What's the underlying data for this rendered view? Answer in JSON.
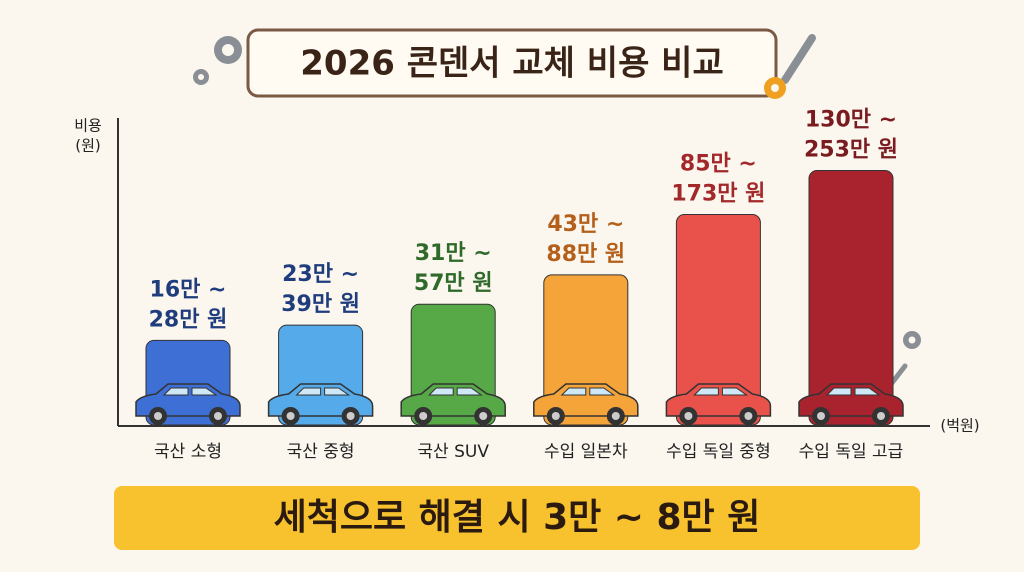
{
  "chart_data": {
    "type": "range-bar",
    "title": "2026 콘덴서 교체 비용 비교",
    "y_axis_label": [
      "비용",
      "(원)"
    ],
    "x_axis_unit": "(벅원)",
    "categories": [
      "국산 소형",
      "국산 중형",
      "국산 SUV",
      "수입 일본차",
      "수입 독일 중형",
      "수입 독일 고급"
    ],
    "low": [
      16,
      23,
      31,
      43,
      85,
      130
    ],
    "high": [
      28,
      39,
      57,
      88,
      173,
      253
    ],
    "value_labels": [
      [
        "16만 ~",
        "28만 원"
      ],
      [
        "23만 ~",
        "39만 원"
      ],
      [
        "31만 ~",
        "57만 원"
      ],
      [
        "43만 ~",
        "88만 원"
      ],
      [
        "85만 ~",
        "173만 원"
      ],
      [
        "130만 ~",
        "253만 원"
      ]
    ],
    "colors": [
      "#3e6fd4",
      "#55aaea",
      "#57a847",
      "#f5a43a",
      "#e8524a",
      "#a9232f"
    ],
    "label_colors": [
      "#1f3d7d",
      "#1f3d7d",
      "#2f6a2a",
      "#b4601b",
      "#a2282a",
      "#7a1b20"
    ],
    "footer": "세척으로 해결 시 3만 ~ 8만 원"
  }
}
